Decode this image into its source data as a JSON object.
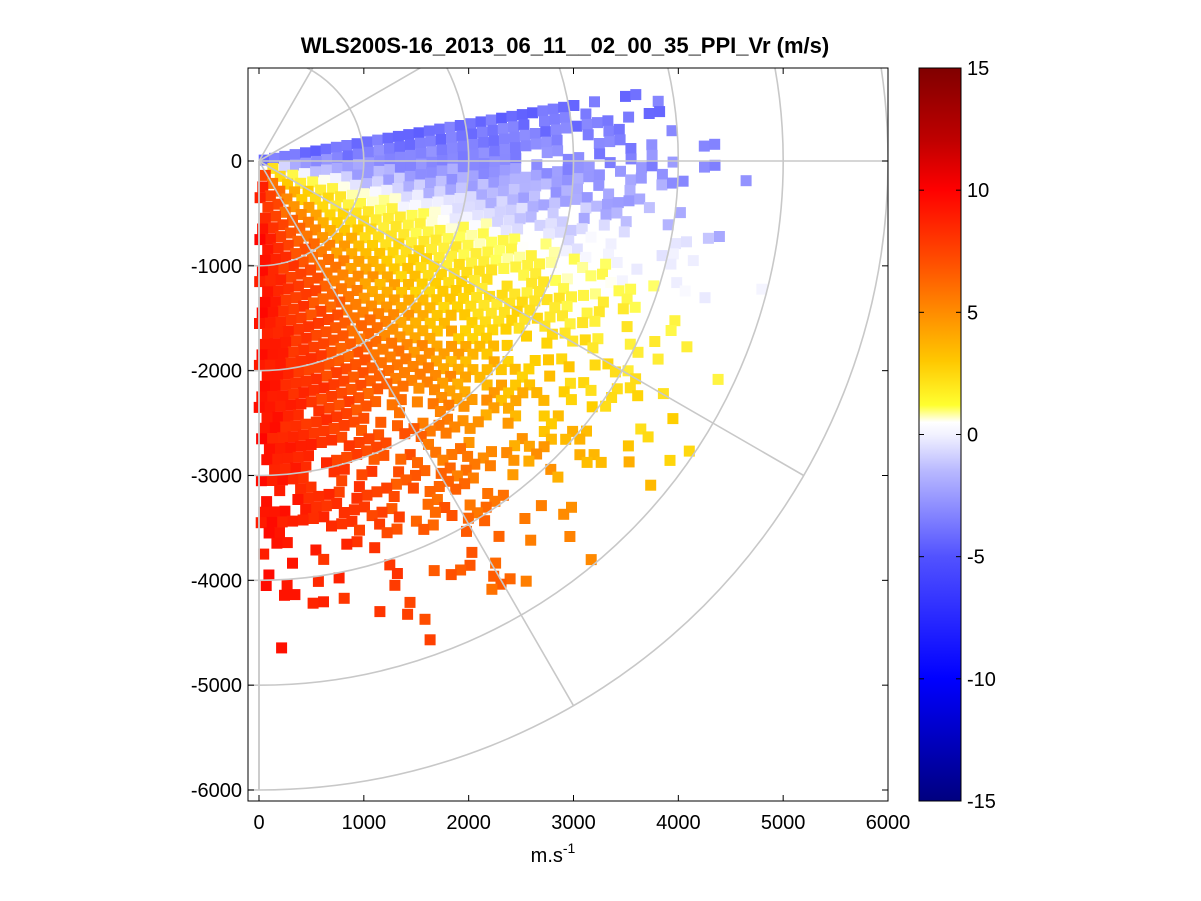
{
  "chart_data": {
    "type": "heatmap",
    "subtype": "polar-ppi-scan",
    "title": "WLS200S-16_2013_06_11__02_00_35_PPI_Vr (m/s)",
    "xlabel": "m.s",
    "xlabel_superscript": "-1",
    "ylabel": "",
    "xlim": [
      -100,
      6000
    ],
    "ylim": [
      -6100,
      900
    ],
    "xticks": [
      0,
      1000,
      2000,
      3000,
      4000,
      5000,
      6000
    ],
    "xtick_labels": [
      "0",
      "1000",
      "2000",
      "3000",
      "4000",
      "5000",
      "6000"
    ],
    "yticks": [
      0,
      -1000,
      -2000,
      -3000,
      -4000,
      -5000,
      -6000
    ],
    "ytick_labels": [
      "0",
      "-1000",
      "-2000",
      "-3000",
      "-4000",
      "-5000",
      "-6000"
    ],
    "polar_grid": {
      "range_rings_m": [
        1000,
        2000,
        3000,
        4000,
        5000,
        6000
      ],
      "azimuth_spokes_deg": [
        0,
        -30,
        -60,
        -90,
        30,
        60
      ]
    },
    "scan_sector_deg": [
      -90,
      10
    ],
    "max_range_m": 5000,
    "colorbar": {
      "min": -15,
      "max": 15,
      "ticks": [
        15,
        10,
        5,
        0,
        -5,
        -10,
        -15
      ],
      "tick_labels": [
        "15",
        "10",
        "5",
        "0",
        "-5",
        "-10",
        "-15"
      ],
      "colors": {
        "neg_extreme": "#00007f",
        "neg_strong": "#0000ff",
        "neg_mid": "#6b6bff",
        "neg_weak": "#f2f2ff",
        "pos_weak": "#ffff40",
        "pos_low": "#ffd000",
        "pos_mid": "#ff8000",
        "pos_strong": "#ff0000",
        "pos_extreme": "#800000"
      }
    },
    "velocity_field": {
      "description": "radial velocity vs azimuth",
      "azimuth_deg": [
        10,
        0,
        -10,
        -20,
        -30,
        -40,
        -50,
        -60,
        -70,
        -80,
        -90
      ],
      "vr_m_s": [
        -4.0,
        -3.0,
        -1.5,
        0.8,
        2.2,
        3.5,
        5.0,
        6.5,
        7.8,
        9.0,
        10.2
      ]
    }
  }
}
